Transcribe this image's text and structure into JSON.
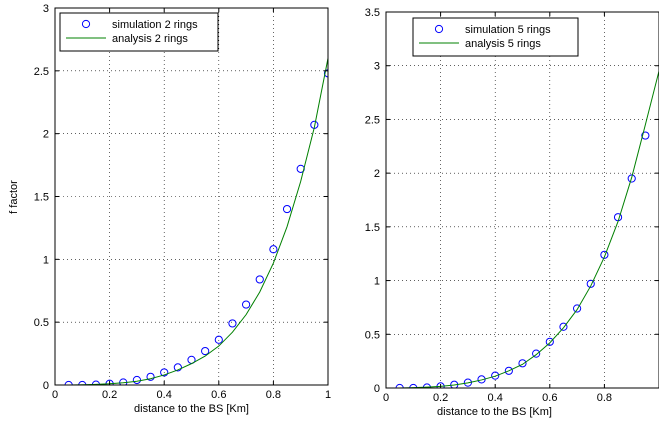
{
  "chart_data": [
    {
      "type": "scatter",
      "xlabel": "distance to the BS [Km]",
      "ylabel": "f factor",
      "xlim": [
        0,
        1
      ],
      "ylim": [
        0,
        3
      ],
      "xticks": [
        0,
        0.2,
        0.4,
        0.6,
        0.8,
        1
      ],
      "yticks": [
        0,
        0.5,
        1,
        1.5,
        2,
        2.5,
        3
      ],
      "xtick_labels": [
        "0",
        "0.2",
        "0.4",
        "0.6",
        "0.8",
        "1"
      ],
      "ytick_labels": [
        "0",
        "0.5",
        "1",
        "1.5",
        "2",
        "2.5",
        "3"
      ],
      "grid": true,
      "legend_position": "top-left",
      "series": [
        {
          "name": "simulation 2 rings",
          "kind": "markers",
          "color": "#0000ff",
          "x": [
            0.05,
            0.1,
            0.15,
            0.2,
            0.25,
            0.3,
            0.35,
            0.4,
            0.45,
            0.5,
            0.55,
            0.6,
            0.65,
            0.7,
            0.75,
            0.8,
            0.85,
            0.9,
            0.95,
            1.0
          ],
          "y": [
            0.0,
            0.0,
            0.003,
            0.01,
            0.02,
            0.04,
            0.065,
            0.1,
            0.14,
            0.2,
            0.27,
            0.36,
            0.49,
            0.64,
            0.84,
            1.08,
            1.4,
            1.72,
            2.07,
            2.48
          ]
        },
        {
          "name": "analysis 2 rings",
          "kind": "line",
          "color": "#008000",
          "x": [
            0.0,
            0.05,
            0.1,
            0.15,
            0.2,
            0.25,
            0.3,
            0.35,
            0.4,
            0.45,
            0.5,
            0.55,
            0.6,
            0.65,
            0.7,
            0.75,
            0.8,
            0.85,
            0.9,
            0.95,
            1.0
          ],
          "y": [
            0.0,
            0.0,
            0.002,
            0.005,
            0.01,
            0.018,
            0.03,
            0.05,
            0.08,
            0.12,
            0.17,
            0.23,
            0.31,
            0.42,
            0.56,
            0.74,
            0.97,
            1.26,
            1.62,
            2.05,
            2.6
          ]
        }
      ]
    },
    {
      "type": "scatter",
      "xlabel": "distance to the BS [Km]",
      "ylabel": "",
      "xlim": [
        0,
        1
      ],
      "ylim": [
        0,
        3.5
      ],
      "xticks": [
        0,
        0.2,
        0.4,
        0.6,
        0.8
      ],
      "yticks": [
        0,
        0.5,
        1,
        1.5,
        2,
        2.5,
        3,
        3.5
      ],
      "xtick_labels": [
        "0",
        "0.2",
        "0.4",
        "0.6",
        "0.8"
      ],
      "ytick_labels": [
        "0",
        "0.5",
        "1",
        "1.5",
        "2",
        "2.5",
        "3",
        "3.5"
      ],
      "grid": true,
      "legend_position": "top-left",
      "series": [
        {
          "name": "simulation 5 rings",
          "kind": "markers",
          "color": "#0000ff",
          "x": [
            0.05,
            0.1,
            0.15,
            0.2,
            0.25,
            0.3,
            0.35,
            0.4,
            0.45,
            0.5,
            0.55,
            0.6,
            0.65,
            0.7,
            0.75,
            0.8,
            0.85,
            0.9,
            0.95
          ],
          "y": [
            0.0,
            0.0,
            0.005,
            0.015,
            0.03,
            0.05,
            0.08,
            0.115,
            0.16,
            0.23,
            0.32,
            0.43,
            0.57,
            0.74,
            0.97,
            1.24,
            1.59,
            1.95,
            2.35
          ]
        },
        {
          "name": "analysis 5 rings",
          "kind": "line",
          "color": "#008000",
          "x": [
            0.0,
            0.05,
            0.1,
            0.15,
            0.2,
            0.25,
            0.3,
            0.35,
            0.4,
            0.45,
            0.5,
            0.55,
            0.6,
            0.65,
            0.7,
            0.75,
            0.8,
            0.85,
            0.9,
            0.95,
            1.0
          ],
          "y": [
            0.0,
            0.0,
            0.003,
            0.008,
            0.015,
            0.028,
            0.048,
            0.075,
            0.11,
            0.16,
            0.22,
            0.31,
            0.42,
            0.56,
            0.73,
            0.95,
            1.22,
            1.55,
            1.96,
            2.45,
            2.95
          ]
        }
      ]
    }
  ]
}
